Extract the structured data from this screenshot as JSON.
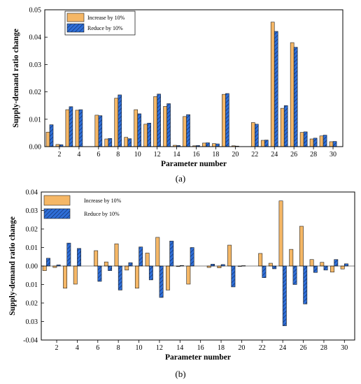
{
  "chart_data": [
    {
      "type": "bar",
      "caption": "(a)",
      "xlabel": "Parameter number",
      "ylabel": "Supply-demand ratio change",
      "ylim": [
        0,
        0.05
      ],
      "yticks": [
        "0.00",
        "0.01",
        "0.02",
        "0.03",
        "0.04",
        "0.05"
      ],
      "xtick_labels": [
        "2",
        "4",
        "6",
        "8",
        "10",
        "12",
        "14",
        "16",
        "18",
        "20",
        "22",
        "24",
        "26",
        "28",
        "30"
      ],
      "categories": [
        1,
        2,
        3,
        4,
        5,
        6,
        7,
        8,
        9,
        10,
        11,
        12,
        13,
        14,
        15,
        16,
        17,
        18,
        19,
        20,
        21,
        22,
        23,
        24,
        25,
        26,
        27,
        28,
        29,
        30
      ],
      "legend_position": "top-left",
      "series": [
        {
          "name": "Increase by 10%",
          "color": "#F5B766",
          "values": [
            0.0053,
            0.0008,
            0.0135,
            0.0133,
            0,
            0.0115,
            0.0028,
            0.0177,
            0.0034,
            0.0135,
            0.0082,
            0.0183,
            0.0147,
            0.0005,
            0.011,
            0.0003,
            0.0013,
            0.0011,
            0.0191,
            0.0003,
            0,
            0.0088,
            0.0023,
            0.0455,
            0.014,
            0.038,
            0.0052,
            0.0028,
            0.0039,
            0.0018
          ]
        },
        {
          "name": "Reduce by 10%",
          "color": "#2E6FD8",
          "values": [
            0.008,
            0.0007,
            0.0146,
            0.0135,
            0,
            0.0113,
            0.003,
            0.0189,
            0.0029,
            0.012,
            0.0086,
            0.0192,
            0.0157,
            0.0004,
            0.0117,
            0.0004,
            0.0014,
            0.001,
            0.0194,
            0.0002,
            0,
            0.0082,
            0.0024,
            0.0421,
            0.015,
            0.0363,
            0.0054,
            0.0031,
            0.0042,
            0.0019
          ]
        }
      ]
    },
    {
      "type": "bar",
      "caption": "(b)",
      "xlabel": "Parameter number",
      "ylabel": "Supply-demand ratio change",
      "ylim": [
        -0.04,
        0.04
      ],
      "yticks": [
        "-0.04",
        "0.03",
        "0.02",
        "0.01",
        "0.00",
        "0.01",
        "0.02",
        "0.03",
        "0.04"
      ],
      "xtick_labels": [
        "2",
        "4",
        "6",
        "8",
        "10",
        "12",
        "14",
        "16",
        "18",
        "20",
        "22",
        "24",
        "26",
        "28",
        "30"
      ],
      "categories": [
        1,
        2,
        3,
        4,
        5,
        6,
        7,
        8,
        9,
        10,
        11,
        12,
        13,
        14,
        15,
        16,
        17,
        18,
        19,
        20,
        21,
        22,
        23,
        24,
        25,
        26,
        27,
        28,
        29,
        30
      ],
      "legend_position": "top-left",
      "series": [
        {
          "name": "Increase by 10%",
          "color": "#F5B766",
          "values": [
            -0.0025,
            -0.0008,
            -0.012,
            -0.0098,
            0,
            0.0083,
            0.0022,
            0.012,
            -0.0022,
            -0.012,
            0.007,
            0.0155,
            -0.013,
            -0.0003,
            -0.0098,
            0,
            -0.0008,
            -0.001,
            0.0113,
            -0.0002,
            0,
            0.0068,
            0.0015,
            0.0352,
            0.009,
            0.0215,
            0.0035,
            0.002,
            -0.0033,
            -0.0016
          ]
        },
        {
          "name": "Reduce by 10%",
          "color": "#2E6FD8",
          "values": [
            0.0042,
            0.0006,
            0.0124,
            0.0095,
            0,
            -0.0083,
            -0.0025,
            -0.013,
            0.0018,
            0.0103,
            -0.0075,
            -0.017,
            0.0135,
            0.0003,
            0.01,
            0,
            0.001,
            0.0008,
            -0.0113,
            0.0002,
            0,
            -0.0063,
            -0.0015,
            -0.0323,
            -0.01,
            -0.0205,
            -0.0035,
            -0.0022,
            0.0035,
            0.0012
          ]
        }
      ]
    }
  ]
}
